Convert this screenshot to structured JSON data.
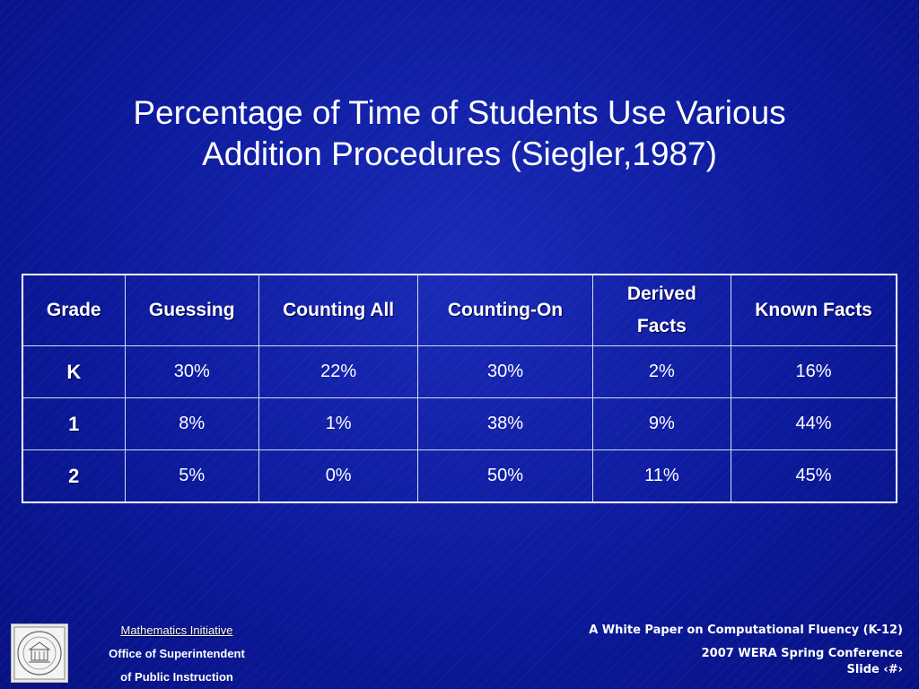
{
  "title": {
    "line1": "Percentage of Time of Students Use Various",
    "line2": "Addition Procedures (Siegler,1987)"
  },
  "table": {
    "headers": [
      "Grade",
      "Guessing",
      "Counting All",
      "Counting-On",
      "Derived",
      "Facts",
      "Known Facts"
    ],
    "rows": [
      {
        "grade": "K",
        "values": [
          "30%",
          "22%",
          "30%",
          "2%",
          "16%"
        ]
      },
      {
        "grade": "1",
        "values": [
          "8%",
          "1%",
          "38%",
          "9%",
          "44%"
        ]
      },
      {
        "grade": "2",
        "values": [
          "5%",
          "0%",
          "50%",
          "11%",
          "45%"
        ]
      }
    ]
  },
  "footer": {
    "left": {
      "initiative": "Mathematics Initiative",
      "office": "Office of Superintendent",
      "instruction": "of Public Instruction"
    },
    "right": {
      "paper": "A White Paper on Computational Fluency (K-12)",
      "conference": "2007 WERA Spring Conference",
      "slide": "Slide ‹#›"
    },
    "logo_icon": "state-seal-icon"
  },
  "colors": {
    "background": "#0b1a9e",
    "text": "#ffffff",
    "border": "#d8dcf0"
  }
}
